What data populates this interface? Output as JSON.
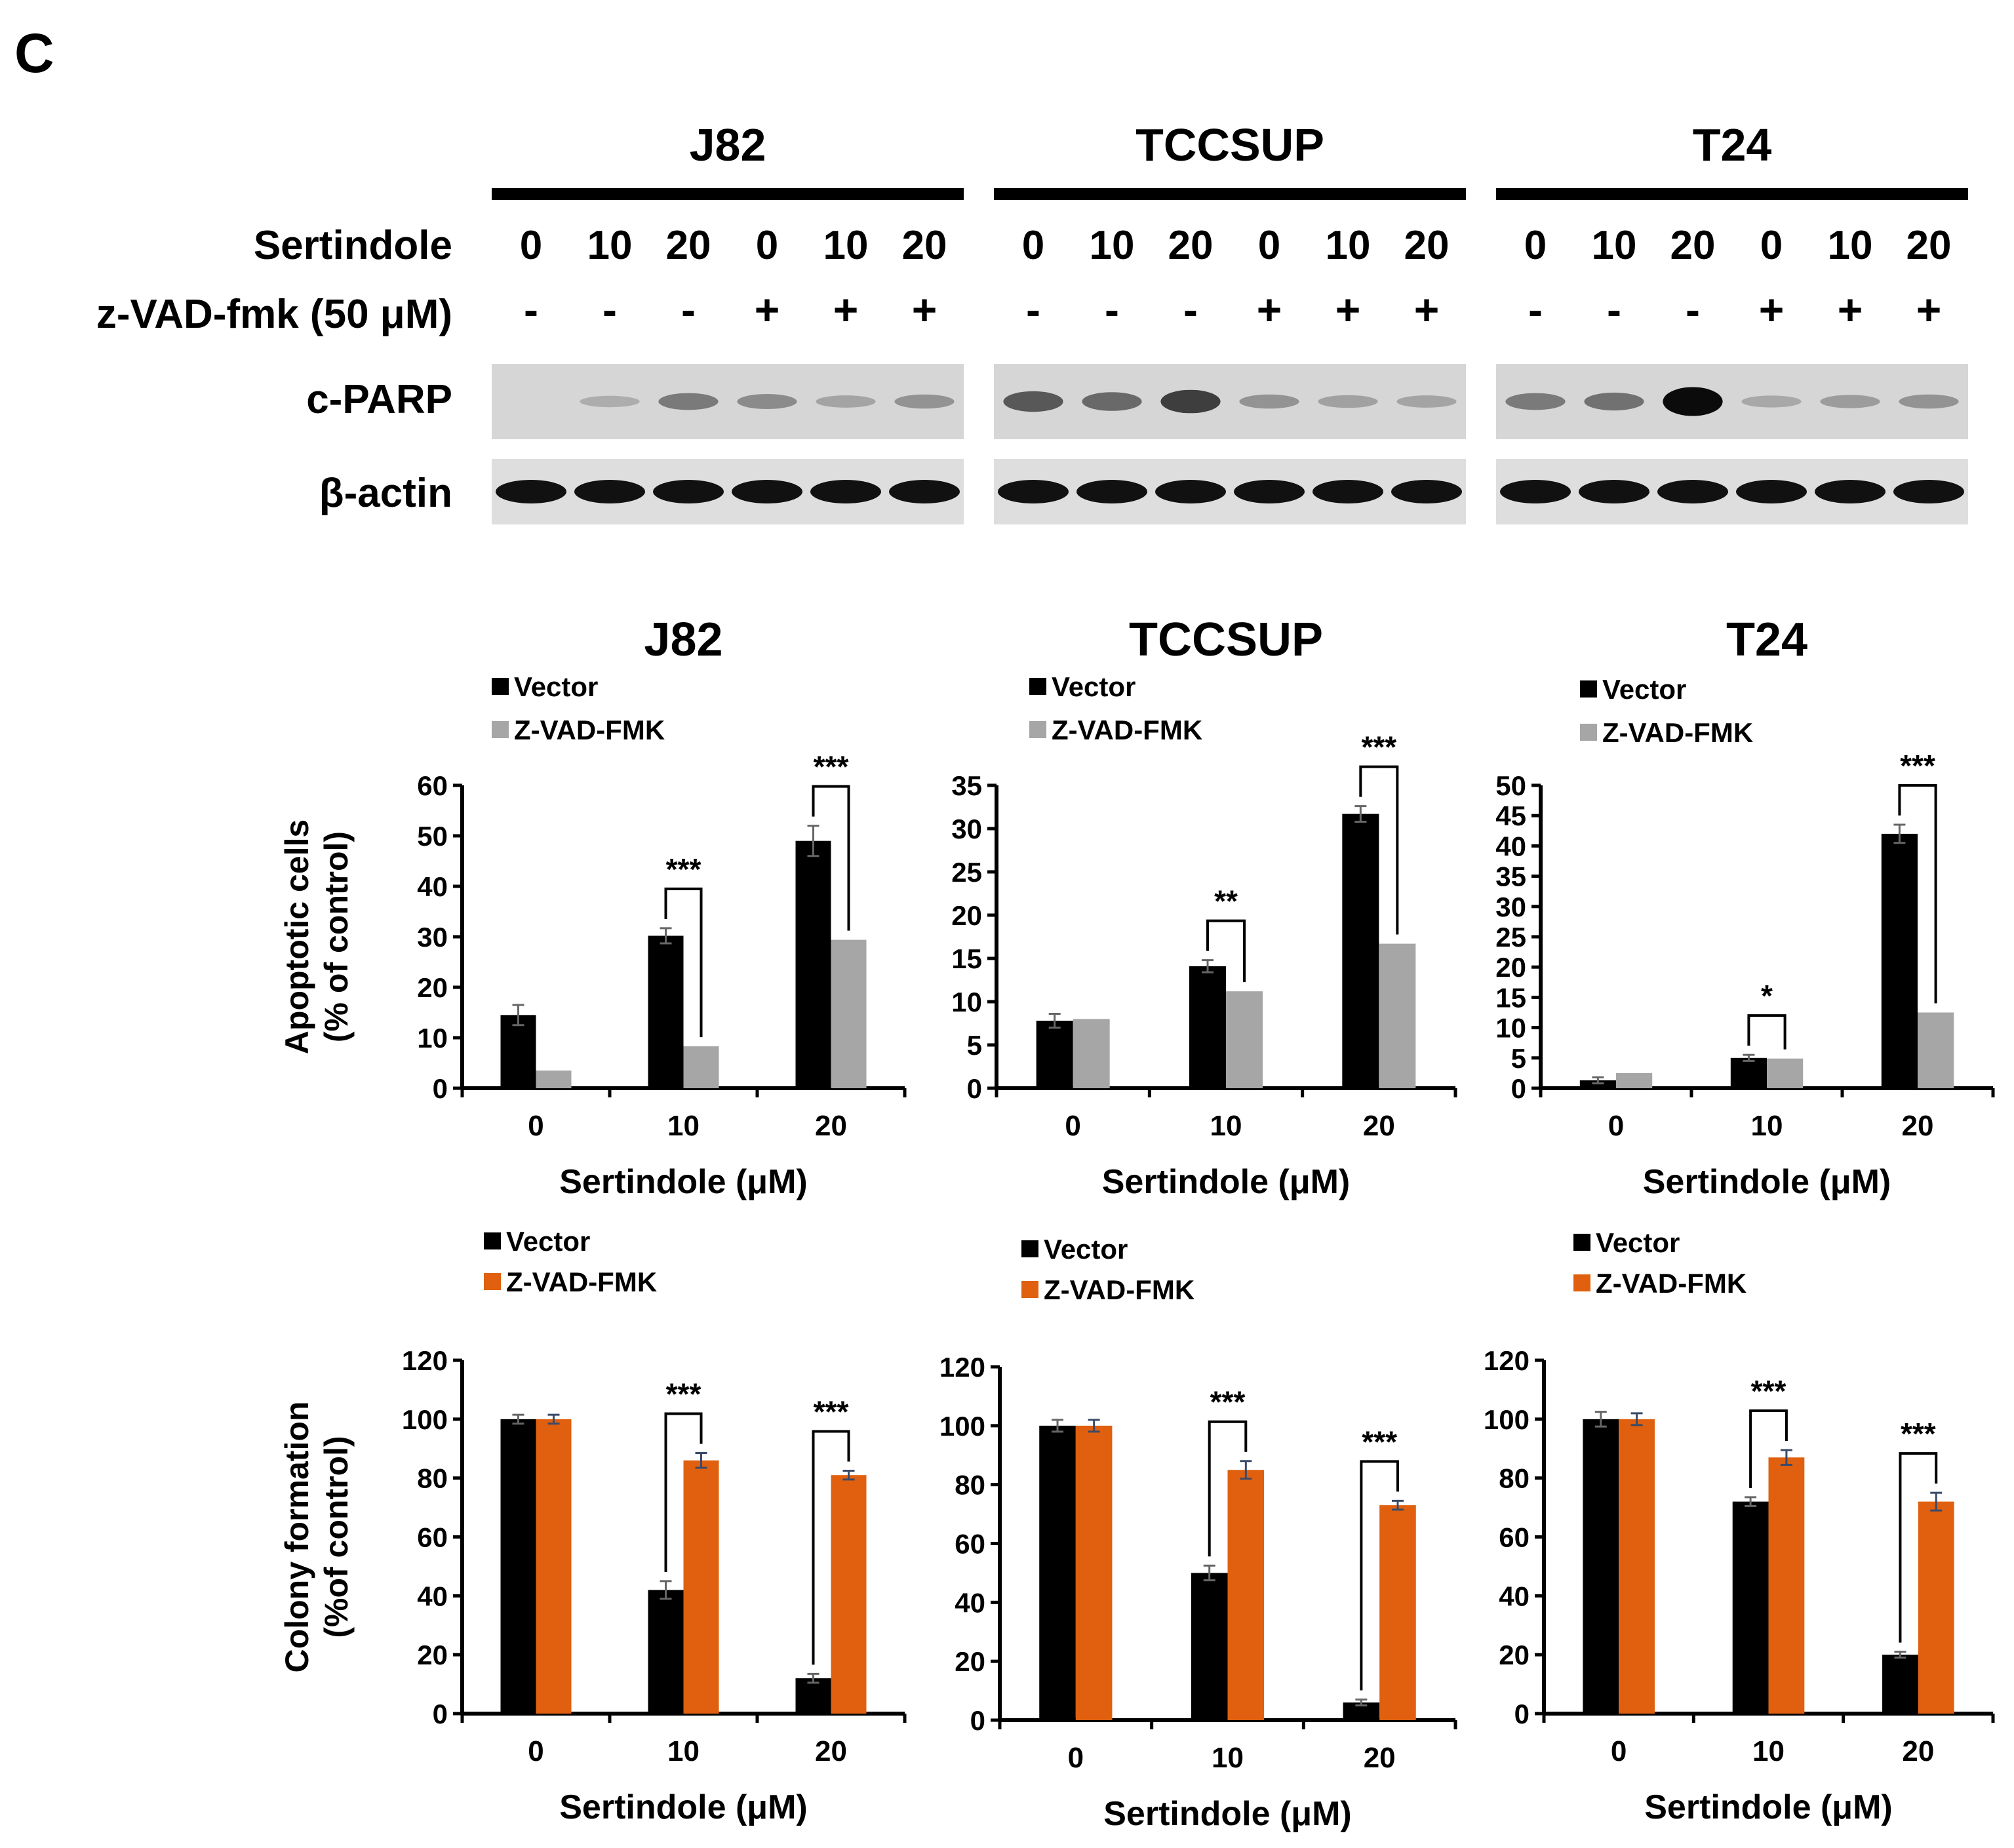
{
  "panel_letter": "C",
  "western_blot": {
    "cell_lines": [
      "J82",
      "TCCSUP",
      "T24"
    ],
    "row_labels": {
      "sertindole": "Sertindole",
      "zvad": "z-VAD-fmk (50 μM)",
      "cparp": "c-PARP",
      "actin": "β-actin"
    },
    "lane_doses": [
      "0",
      "10",
      "20",
      "0",
      "10",
      "20"
    ],
    "lane_zvad": [
      "-",
      "-",
      "-",
      "+",
      "+",
      "+"
    ],
    "cparp_band_intensity": {
      "J82": [
        0.0,
        0.05,
        0.35,
        0.25,
        0.1,
        0.2
      ],
      "TCCSUP": [
        0.55,
        0.45,
        0.7,
        0.2,
        0.12,
        0.1
      ],
      "T24": [
        0.35,
        0.4,
        1.0,
        0.08,
        0.15,
        0.2
      ]
    }
  },
  "colors": {
    "vector": "#000000",
    "zvad_apoptosis": "#a6a6a6",
    "zvad_colony": "#e0600f"
  },
  "chart_data": [
    {
      "type": "bar",
      "title": "J82",
      "xlabel": "Sertindole (μM)",
      "ylabel": [
        "Apoptotic cells",
        "(% of control)"
      ],
      "categories": [
        "0",
        "10",
        "20"
      ],
      "ylim": [
        0,
        60
      ],
      "yticks": [
        0,
        10,
        20,
        30,
        40,
        50,
        60
      ],
      "legend_position": "top-left",
      "series": [
        {
          "name": "Vector",
          "values": [
            14.5,
            30.2,
            49
          ],
          "errors": [
            2,
            1.5,
            3
          ],
          "color": "#000000"
        },
        {
          "name": "Z-VAD-FMK",
          "values": [
            3.5,
            8.3,
            29.4
          ],
          "errors": [
            0,
            0,
            0
          ],
          "color": "#a6a6a6"
        }
      ],
      "significance": [
        {
          "category": 1,
          "label": "***"
        },
        {
          "category": 2,
          "label": "***"
        }
      ]
    },
    {
      "type": "bar",
      "title": "TCCSUP",
      "xlabel": "Sertindole (μM)",
      "ylabel": "",
      "categories": [
        "0",
        "10",
        "20"
      ],
      "ylim": [
        0,
        35
      ],
      "yticks": [
        0,
        5,
        10,
        15,
        20,
        25,
        30,
        35
      ],
      "legend_position": "top-left",
      "series": [
        {
          "name": "Vector",
          "values": [
            7.8,
            14.1,
            31.7
          ],
          "errors": [
            0.8,
            0.7,
            0.9
          ],
          "color": "#000000"
        },
        {
          "name": "Z-VAD-FMK",
          "values": [
            8.0,
            11.2,
            16.7
          ],
          "errors": [
            0,
            0,
            0
          ],
          "color": "#a6a6a6"
        }
      ],
      "significance": [
        {
          "category": 1,
          "label": "**"
        },
        {
          "category": 2,
          "label": "***"
        }
      ]
    },
    {
      "type": "bar",
      "title": "T24",
      "xlabel": "Sertindole (μM)",
      "ylabel": "",
      "categories": [
        "0",
        "10",
        "20"
      ],
      "ylim": [
        0,
        50
      ],
      "yticks": [
        0,
        5,
        10,
        15,
        20,
        25,
        30,
        35,
        40,
        45,
        50
      ],
      "legend_position": "top-left",
      "series": [
        {
          "name": "Vector",
          "values": [
            1.3,
            5.0,
            42
          ],
          "errors": [
            0.5,
            0.5,
            1.5
          ],
          "color": "#000000"
        },
        {
          "name": "Z-VAD-FMK",
          "values": [
            2.5,
            4.9,
            12.5
          ],
          "errors": [
            0,
            0,
            0
          ],
          "color": "#a6a6a6"
        }
      ],
      "significance": [
        {
          "category": 1,
          "label": "*"
        },
        {
          "category": 2,
          "label": "***"
        }
      ]
    },
    {
      "type": "bar",
      "title": "",
      "xlabel": "Sertindole (μM)",
      "ylabel": [
        "Colony formation",
        "(%of control)"
      ],
      "categories": [
        "0",
        "10",
        "20"
      ],
      "ylim": [
        0,
        120
      ],
      "yticks": [
        0,
        20,
        40,
        60,
        80,
        100,
        120
      ],
      "legend_position": "top-left",
      "series": [
        {
          "name": "Vector",
          "values": [
            100,
            42,
            12
          ],
          "errors": [
            1.5,
            3,
            1.5
          ],
          "color": "#000000"
        },
        {
          "name": "Z-VAD-FMK",
          "values": [
            100,
            86,
            81
          ],
          "errors": [
            1.5,
            2.5,
            1.5
          ],
          "color": "#e0600f"
        }
      ],
      "significance": [
        {
          "category": 1,
          "label": "***"
        },
        {
          "category": 2,
          "label": "***"
        }
      ]
    },
    {
      "type": "bar",
      "title": "",
      "xlabel": "Sertindole (μM)",
      "ylabel": "",
      "categories": [
        "0",
        "10",
        "20"
      ],
      "ylim": [
        0,
        120
      ],
      "yticks": [
        0,
        20,
        40,
        60,
        80,
        100,
        120
      ],
      "legend_position": "top-left",
      "series": [
        {
          "name": "Vector",
          "values": [
            100,
            50,
            6
          ],
          "errors": [
            2,
            2.5,
            1
          ],
          "color": "#000000"
        },
        {
          "name": "Z-VAD-FMK",
          "values": [
            100,
            85,
            73
          ],
          "errors": [
            2,
            3,
            1.5
          ],
          "color": "#e0600f"
        }
      ],
      "significance": [
        {
          "category": 1,
          "label": "***"
        },
        {
          "category": 2,
          "label": "***"
        }
      ]
    },
    {
      "type": "bar",
      "title": "",
      "xlabel": "Sertindole (μM)",
      "ylabel": "",
      "categories": [
        "0",
        "10",
        "20"
      ],
      "ylim": [
        0,
        120
      ],
      "yticks": [
        0,
        20,
        40,
        60,
        80,
        100,
        120
      ],
      "legend_position": "top-left",
      "series": [
        {
          "name": "Vector",
          "values": [
            100,
            72,
            20
          ],
          "errors": [
            2.5,
            1.5,
            1
          ],
          "color": "#000000"
        },
        {
          "name": "Z-VAD-FMK",
          "values": [
            100,
            87,
            72
          ],
          "errors": [
            2,
            2.5,
            3
          ],
          "color": "#e0600f"
        }
      ],
      "significance": [
        {
          "category": 1,
          "label": "***"
        },
        {
          "category": 2,
          "label": "***"
        }
      ]
    }
  ]
}
